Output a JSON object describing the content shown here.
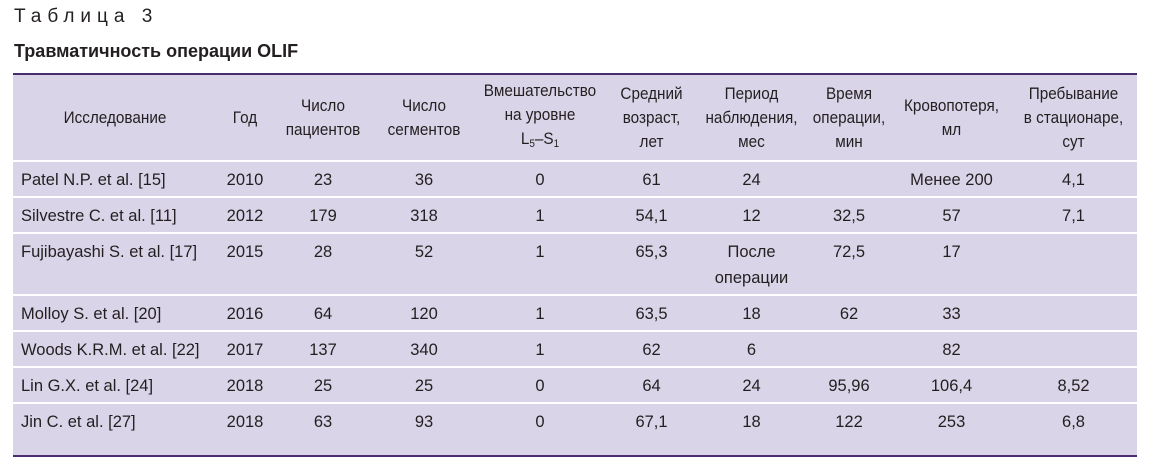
{
  "caption": "Таблица 3",
  "title": "Травматичность операции OLIF",
  "headers": {
    "study": "Исследование",
    "year": "Год",
    "patients": [
      "Число",
      "пациентов"
    ],
    "segments": [
      "Число",
      "сегментов"
    ],
    "intervention": {
      "line1": "Вмешательство",
      "line2": "на уровне",
      "l": "L",
      "l_sub": "5",
      "dash": "–S",
      "s_sub": "1"
    },
    "age": [
      "Средний",
      "возраст,",
      "лет"
    ],
    "followup": [
      "Период",
      "наблюдения,",
      "мес"
    ],
    "optime": [
      "Время",
      "операции,",
      "мин"
    ],
    "bloodloss": [
      "Кровопотеря,",
      "мл"
    ],
    "stay": [
      "Пребывание",
      "в стационаре,",
      "сут"
    ]
  },
  "rows": [
    {
      "study": "Patel N.P. et al. [15]",
      "year": "2010",
      "patients": "23",
      "segments": "36",
      "intervention": "0",
      "age": "61",
      "followup": [
        "24"
      ],
      "optime": "",
      "bloodloss": "Менее 200",
      "stay": "4,1"
    },
    {
      "study": "Silvestre C. et al. [11]",
      "year": "2012",
      "patients": "179",
      "segments": "318",
      "intervention": "1",
      "age": "54,1",
      "followup": [
        "12"
      ],
      "optime": "32,5",
      "bloodloss": "57",
      "stay": "7,1"
    },
    {
      "study": "Fujibayashi S. et al. [17]",
      "year": "2015",
      "patients": "28",
      "segments": "52",
      "intervention": "1",
      "age": "65,3",
      "followup": [
        "После",
        "операции"
      ],
      "optime": "72,5",
      "bloodloss": "17",
      "stay": ""
    },
    {
      "study": "Molloy S. et al. [20]",
      "year": "2016",
      "patients": "64",
      "segments": "120",
      "intervention": "1",
      "age": "63,5",
      "followup": [
        "18"
      ],
      "optime": "62",
      "bloodloss": "33",
      "stay": ""
    },
    {
      "study": "Woods K.R.M. et al. [22]",
      "year": "2017",
      "patients": "137",
      "segments": "340",
      "intervention": "1",
      "age": "62",
      "followup": [
        "6"
      ],
      "optime": "",
      "bloodloss": "82",
      "stay": ""
    },
    {
      "study": "Lin G.X. et al. [24]",
      "year": "2018",
      "patients": "25",
      "segments": "25",
      "intervention": "0",
      "age": "64",
      "followup": [
        "24"
      ],
      "optime": "95,96",
      "bloodloss": "106,4",
      "stay": "8,52"
    },
    {
      "study": "Jin C. et al. [27]",
      "year": "2018",
      "patients": "63",
      "segments": "93",
      "intervention": "0",
      "age": "67,1",
      "followup": [
        "18"
      ],
      "optime": "122",
      "bloodloss": "253",
      "stay": "6,8"
    }
  ]
}
